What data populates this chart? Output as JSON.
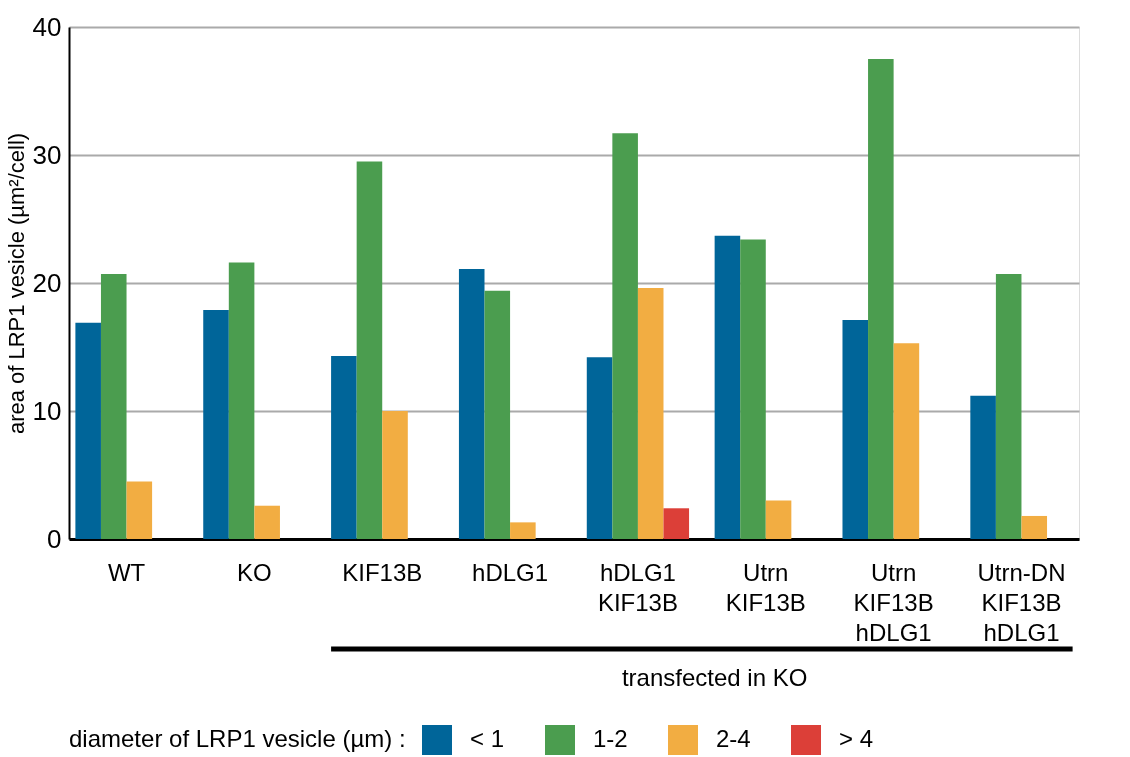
{
  "chart_data": {
    "type": "bar",
    "ylabel": "area of LRP1 vesicle (µm²/cell)",
    "legend_title": "diameter of LRP1 vesicle (µm) :",
    "categories": [
      "WT",
      "KO",
      "KIF13B",
      "hDLG1",
      "hDLG1\nKIF13B",
      "Utrn\nKIF13B",
      "Utrn\nKIF13B\nhDLG1",
      "Utrn-DN\nKIF13B\nhDLG1"
    ],
    "series": [
      {
        "name": "< 1",
        "color": "#006599",
        "values": [
          16.9,
          17.9,
          14.3,
          21.1,
          14.2,
          23.7,
          17.1,
          11.2
        ]
      },
      {
        "name": "1-2",
        "color": "#4b9d4f",
        "values": [
          20.7,
          21.6,
          29.5,
          19.4,
          31.7,
          23.4,
          37.5,
          20.7
        ]
      },
      {
        "name": "2-4",
        "color": "#f2ad42",
        "values": [
          4.5,
          2.6,
          10.0,
          1.3,
          19.6,
          3.0,
          15.3,
          1.8
        ]
      },
      {
        "name": "> 4",
        "color": "#dc3f38",
        "values": [
          null,
          null,
          null,
          null,
          2.4,
          null,
          null,
          null
        ]
      }
    ],
    "annotations": [
      "transfected in KO"
    ],
    "ylim": [
      0,
      40
    ],
    "yticks": [
      0,
      10,
      20,
      30,
      40
    ],
    "grid": "y",
    "legend": "bottom"
  }
}
